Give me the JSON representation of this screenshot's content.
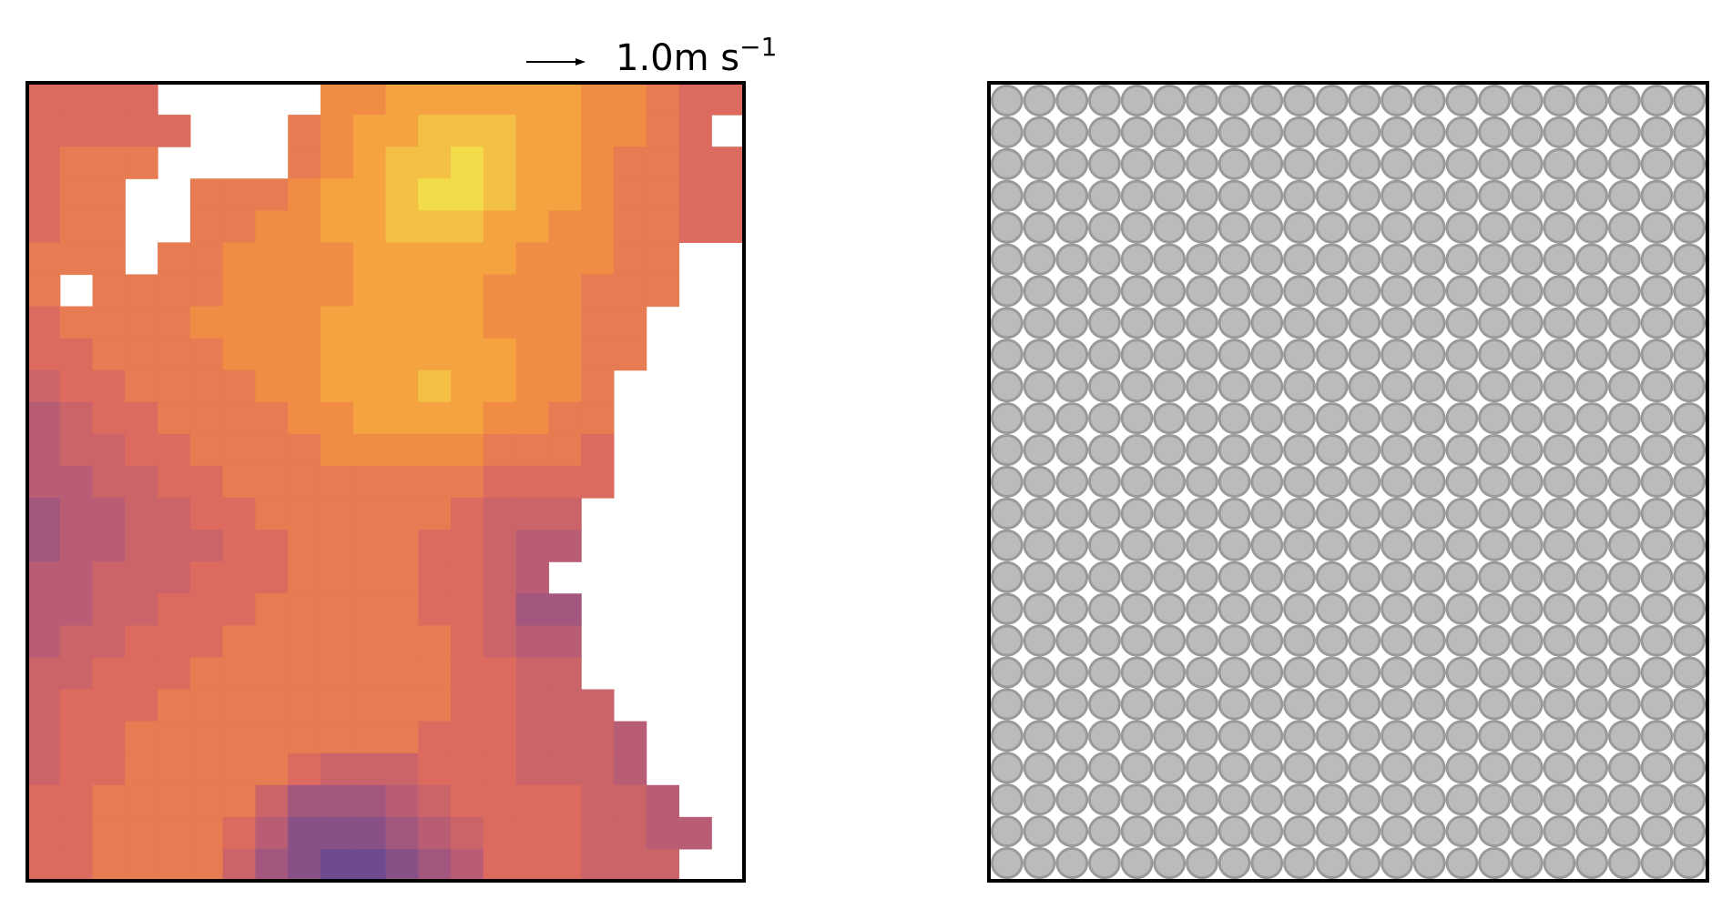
{
  "chart_data": {
    "type": "heatmap",
    "key_label": "1.0m s",
    "key_exponent": "−1",
    "clim": [
      0,
      10
    ],
    "colormap": [
      "#6e4a8e",
      "#b05a7a",
      "#dd6a5e",
      "#f5953e",
      "#f2dc4a"
    ],
    "values": [
      [
        5,
        5,
        5,
        5,
        null,
        null,
        null,
        null,
        null,
        7,
        7,
        8,
        8,
        8,
        8,
        8,
        8,
        7,
        7,
        6,
        5,
        5
      ],
      [
        5,
        5,
        5,
        5,
        5,
        null,
        null,
        null,
        6,
        7,
        8,
        8,
        9,
        9,
        9,
        8,
        8,
        7,
        7,
        6,
        5,
        null
      ],
      [
        5,
        6,
        6,
        6,
        null,
        null,
        null,
        null,
        6,
        7,
        8,
        9,
        9,
        10,
        9,
        8,
        8,
        7,
        6,
        6,
        5,
        5
      ],
      [
        5,
        6,
        6,
        null,
        null,
        6,
        6,
        6,
        7,
        8,
        8,
        9,
        10,
        10,
        9,
        8,
        8,
        7,
        6,
        6,
        5,
        5
      ],
      [
        5,
        6,
        6,
        null,
        null,
        6,
        6,
        7,
        7,
        8,
        8,
        9,
        9,
        9,
        8,
        8,
        7,
        7,
        6,
        6,
        5,
        5
      ],
      [
        6,
        6,
        6,
        null,
        6,
        6,
        7,
        7,
        7,
        7,
        8,
        8,
        8,
        8,
        8,
        7,
        7,
        7,
        6,
        6,
        null,
        null
      ],
      [
        6,
        null,
        6,
        6,
        6,
        6,
        7,
        7,
        7,
        7,
        8,
        8,
        8,
        8,
        7,
        7,
        7,
        6,
        6,
        6,
        null,
        null
      ],
      [
        5,
        6,
        6,
        6,
        6,
        7,
        7,
        7,
        7,
        8,
        8,
        8,
        8,
        8,
        7,
        7,
        7,
        6,
        6,
        null,
        null,
        null
      ],
      [
        5,
        5,
        6,
        6,
        6,
        6,
        7,
        7,
        7,
        8,
        8,
        8,
        8,
        8,
        8,
        7,
        7,
        6,
        6,
        null,
        null,
        null
      ],
      [
        4,
        5,
        5,
        6,
        6,
        6,
        6,
        7,
        7,
        8,
        8,
        8,
        9,
        8,
        8,
        7,
        7,
        6,
        null,
        null,
        null,
        null
      ],
      [
        3,
        4,
        5,
        5,
        6,
        6,
        6,
        6,
        7,
        7,
        8,
        8,
        8,
        8,
        7,
        7,
        6,
        6,
        null,
        null,
        null,
        null
      ],
      [
        3,
        4,
        4,
        5,
        5,
        6,
        6,
        6,
        6,
        7,
        7,
        7,
        7,
        7,
        6,
        6,
        6,
        5,
        null,
        null,
        null,
        null
      ],
      [
        3,
        3,
        4,
        4,
        5,
        5,
        6,
        6,
        6,
        6,
        6,
        6,
        6,
        6,
        5,
        5,
        5,
        5,
        null,
        null,
        null,
        null
      ],
      [
        2,
        3,
        3,
        4,
        4,
        5,
        5,
        6,
        6,
        6,
        6,
        6,
        6,
        5,
        4,
        4,
        4,
        null,
        null,
        null,
        null,
        null
      ],
      [
        2,
        3,
        3,
        4,
        4,
        4,
        5,
        5,
        6,
        6,
        6,
        6,
        5,
        5,
        4,
        3,
        3,
        null,
        null,
        null,
        null,
        null
      ],
      [
        3,
        3,
        4,
        4,
        4,
        5,
        5,
        5,
        6,
        6,
        6,
        6,
        5,
        5,
        4,
        3,
        null,
        null,
        null,
        null,
        null,
        null
      ],
      [
        3,
        3,
        4,
        4,
        5,
        5,
        5,
        6,
        6,
        6,
        6,
        6,
        5,
        5,
        4,
        2,
        2,
        null,
        null,
        null,
        null,
        null
      ],
      [
        3,
        4,
        4,
        5,
        5,
        5,
        6,
        6,
        6,
        6,
        6,
        6,
        6,
        5,
        4,
        3,
        3,
        null,
        null,
        null,
        null,
        null
      ],
      [
        4,
        4,
        5,
        5,
        5,
        6,
        6,
        6,
        6,
        6,
        6,
        6,
        6,
        5,
        5,
        4,
        4,
        null,
        null,
        null,
        null,
        null
      ],
      [
        4,
        5,
        5,
        5,
        6,
        6,
        6,
        6,
        6,
        6,
        6,
        6,
        6,
        5,
        5,
        4,
        4,
        4,
        null,
        null,
        null,
        null
      ],
      [
        4,
        5,
        5,
        6,
        6,
        6,
        6,
        6,
        6,
        6,
        6,
        6,
        5,
        5,
        5,
        4,
        4,
        4,
        3,
        null,
        null,
        null
      ],
      [
        4,
        5,
        5,
        6,
        6,
        6,
        6,
        6,
        5,
        4,
        4,
        4,
        5,
        5,
        5,
        4,
        4,
        4,
        3,
        null,
        null,
        null
      ],
      [
        5,
        5,
        6,
        6,
        6,
        6,
        6,
        4,
        2,
        2,
        2,
        3,
        4,
        5,
        5,
        5,
        5,
        4,
        4,
        3,
        null,
        null
      ],
      [
        5,
        5,
        6,
        6,
        6,
        6,
        5,
        3,
        1,
        1,
        1,
        2,
        3,
        4,
        5,
        5,
        5,
        4,
        4,
        3,
        3,
        null
      ],
      [
        5,
        5,
        6,
        6,
        6,
        6,
        4,
        2,
        1,
        0,
        0,
        1,
        2,
        3,
        5,
        5,
        5,
        4,
        4,
        4,
        null,
        null
      ]
    ]
  }
}
